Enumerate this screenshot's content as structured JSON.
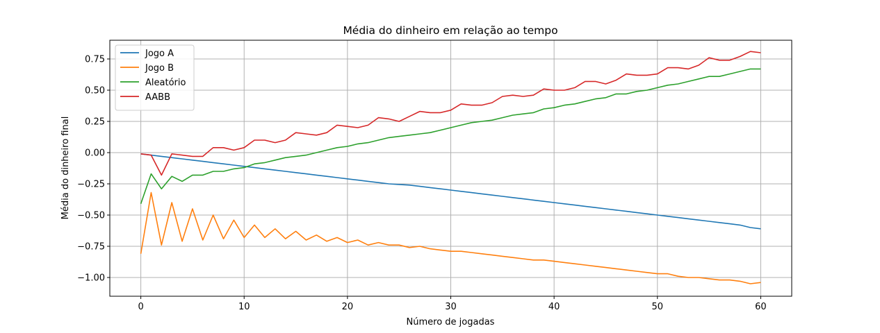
{
  "chart_data": {
    "type": "line",
    "title": "Média do dinheiro em relação ao tempo",
    "xlabel": "Número de jogadas",
    "ylabel": "Média do dinheiro final",
    "xlim": [
      -3,
      63
    ],
    "ylim": [
      -1.15,
      0.9
    ],
    "xticks": [
      0,
      10,
      20,
      30,
      40,
      50,
      60
    ],
    "xtick_labels": [
      "0",
      "10",
      "20",
      "30",
      "40",
      "50",
      "60"
    ],
    "yticks": [
      -1.0,
      -0.75,
      -0.5,
      -0.25,
      0.0,
      0.25,
      0.5,
      0.75
    ],
    "ytick_labels": [
      "−1.00",
      "−0.75",
      "−0.50",
      "−0.25",
      "0.00",
      "0.25",
      "0.50",
      "0.75"
    ],
    "grid": true,
    "legend_position": "top-left",
    "x": [
      0,
      1,
      2,
      3,
      4,
      5,
      6,
      7,
      8,
      9,
      10,
      11,
      12,
      13,
      14,
      15,
      16,
      17,
      18,
      19,
      20,
      21,
      22,
      23,
      24,
      25,
      26,
      27,
      28,
      29,
      30,
      31,
      32,
      33,
      34,
      35,
      36,
      37,
      38,
      39,
      40,
      41,
      42,
      43,
      44,
      45,
      46,
      47,
      48,
      49,
      50,
      51,
      52,
      53,
      54,
      55,
      56,
      57,
      58,
      59,
      60
    ],
    "series": [
      {
        "name": "Jogo A",
        "color": "#1f77b4",
        "values": [
          -0.01,
          -0.02,
          -0.03,
          -0.04,
          -0.05,
          -0.06,
          -0.07,
          -0.08,
          -0.09,
          -0.1,
          -0.11,
          -0.12,
          -0.13,
          -0.14,
          -0.15,
          -0.16,
          -0.17,
          -0.18,
          -0.19,
          -0.2,
          -0.21,
          -0.22,
          -0.23,
          -0.24,
          -0.25,
          -0.255,
          -0.26,
          -0.27,
          -0.28,
          -0.29,
          -0.3,
          -0.31,
          -0.32,
          -0.33,
          -0.34,
          -0.35,
          -0.36,
          -0.37,
          -0.38,
          -0.39,
          -0.4,
          -0.41,
          -0.42,
          -0.43,
          -0.44,
          -0.45,
          -0.46,
          -0.47,
          -0.48,
          -0.49,
          -0.5,
          -0.51,
          -0.52,
          -0.53,
          -0.54,
          -0.55,
          -0.56,
          -0.57,
          -0.58,
          -0.6,
          -0.61
        ]
      },
      {
        "name": "Jogo B",
        "color": "#ff7f0e",
        "values": [
          -0.81,
          -0.32,
          -0.74,
          -0.4,
          -0.71,
          -0.45,
          -0.7,
          -0.5,
          -0.69,
          -0.54,
          -0.68,
          -0.58,
          -0.68,
          -0.61,
          -0.69,
          -0.63,
          -0.7,
          -0.66,
          -0.71,
          -0.68,
          -0.72,
          -0.7,
          -0.74,
          -0.72,
          -0.74,
          -0.74,
          -0.76,
          -0.75,
          -0.77,
          -0.78,
          -0.79,
          -0.79,
          -0.8,
          -0.81,
          -0.82,
          -0.83,
          -0.84,
          -0.85,
          -0.86,
          -0.86,
          -0.87,
          -0.88,
          -0.89,
          -0.9,
          -0.91,
          -0.92,
          -0.93,
          -0.94,
          -0.95,
          -0.96,
          -0.97,
          -0.97,
          -0.99,
          -1.0,
          -1.0,
          -1.01,
          -1.02,
          -1.02,
          -1.03,
          -1.05,
          -1.04
        ]
      },
      {
        "name": "Aleatório",
        "color": "#2ca02c",
        "values": [
          -0.41,
          -0.17,
          -0.29,
          -0.19,
          -0.23,
          -0.18,
          -0.18,
          -0.15,
          -0.15,
          -0.13,
          -0.12,
          -0.09,
          -0.08,
          -0.06,
          -0.04,
          -0.03,
          -0.02,
          0.0,
          0.02,
          0.04,
          0.05,
          0.07,
          0.08,
          0.1,
          0.12,
          0.13,
          0.14,
          0.15,
          0.16,
          0.18,
          0.2,
          0.22,
          0.24,
          0.25,
          0.26,
          0.28,
          0.3,
          0.31,
          0.32,
          0.35,
          0.36,
          0.38,
          0.39,
          0.41,
          0.43,
          0.44,
          0.47,
          0.47,
          0.49,
          0.5,
          0.52,
          0.54,
          0.55,
          0.57,
          0.59,
          0.61,
          0.61,
          0.63,
          0.65,
          0.67,
          0.67
        ]
      },
      {
        "name": "AABB",
        "color": "#d62728",
        "values": [
          -0.01,
          -0.02,
          -0.18,
          -0.01,
          -0.02,
          -0.03,
          -0.03,
          0.04,
          0.04,
          0.02,
          0.04,
          0.1,
          0.1,
          0.08,
          0.1,
          0.16,
          0.15,
          0.14,
          0.16,
          0.22,
          0.21,
          0.2,
          0.22,
          0.28,
          0.27,
          0.25,
          0.29,
          0.33,
          0.32,
          0.32,
          0.34,
          0.39,
          0.38,
          0.38,
          0.4,
          0.45,
          0.46,
          0.45,
          0.46,
          0.51,
          0.5,
          0.5,
          0.52,
          0.57,
          0.57,
          0.55,
          0.58,
          0.63,
          0.62,
          0.62,
          0.63,
          0.68,
          0.68,
          0.67,
          0.7,
          0.76,
          0.74,
          0.74,
          0.77,
          0.81,
          0.8
        ]
      }
    ]
  }
}
